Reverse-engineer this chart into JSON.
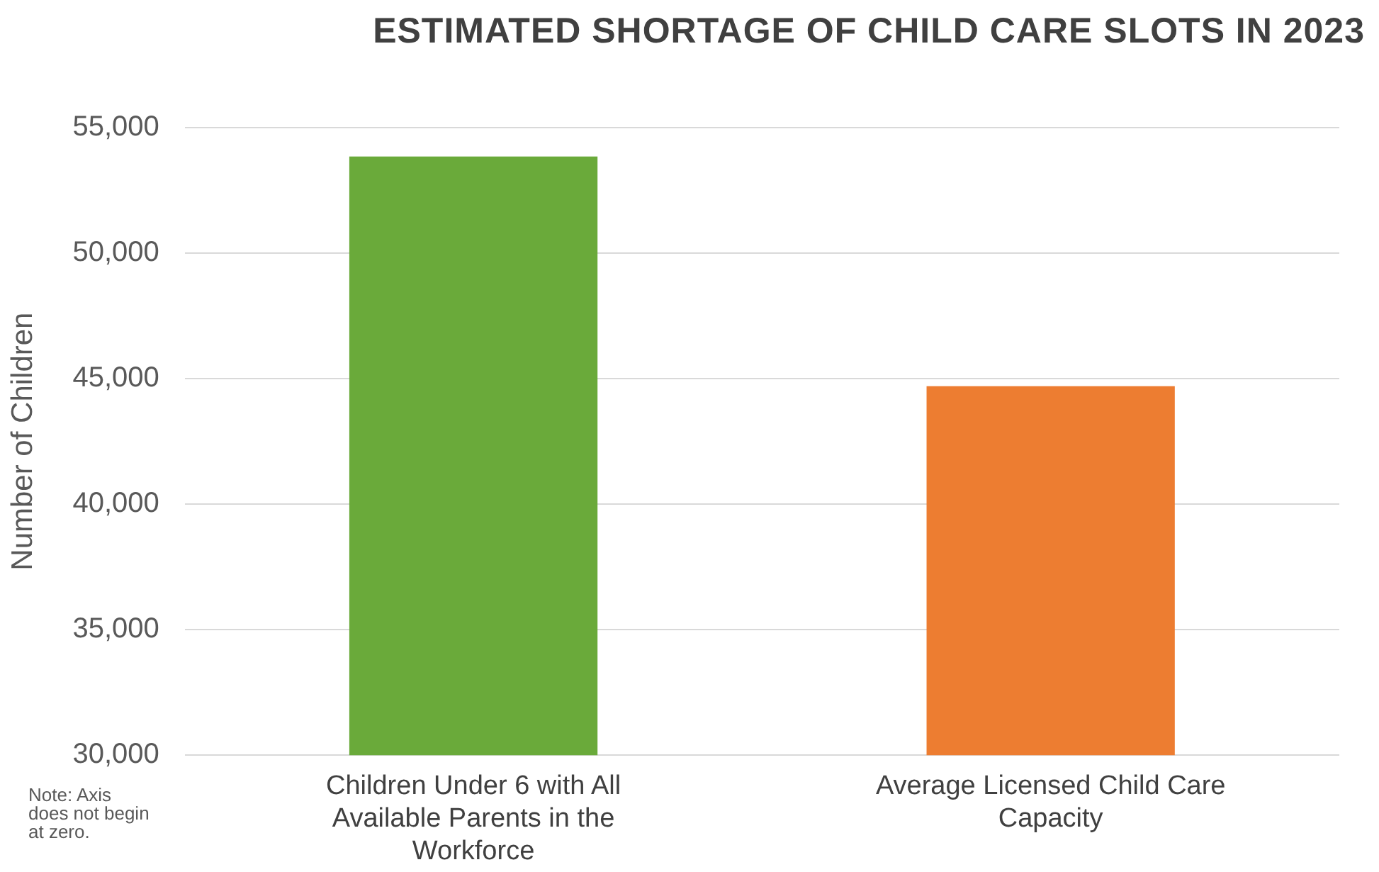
{
  "chart_data": {
    "type": "bar",
    "title": "ESTIMATED SHORTAGE OF CHILD CARE SLOTS IN 2023",
    "ylabel": "Number of Children",
    "categories": [
      "Children Under 6 with All Available Parents in the Workforce",
      "Average Licensed Child Care Capacity"
    ],
    "values": [
      53850,
      44700
    ],
    "colors": [
      "#6aaa3a",
      "#ed7d31"
    ],
    "ylim": [
      30000,
      55000
    ],
    "yticks": [
      {
        "value": 30000,
        "label": "30,000"
      },
      {
        "value": 35000,
        "label": "35,000"
      },
      {
        "value": 40000,
        "label": "40,000"
      },
      {
        "value": 45000,
        "label": "45,000"
      },
      {
        "value": 50000,
        "label": "50,000"
      },
      {
        "value": 55000,
        "label": "55,000"
      }
    ],
    "grid": "y",
    "legend": false,
    "annotations": [
      "Note: Axis does not begin at zero."
    ]
  }
}
